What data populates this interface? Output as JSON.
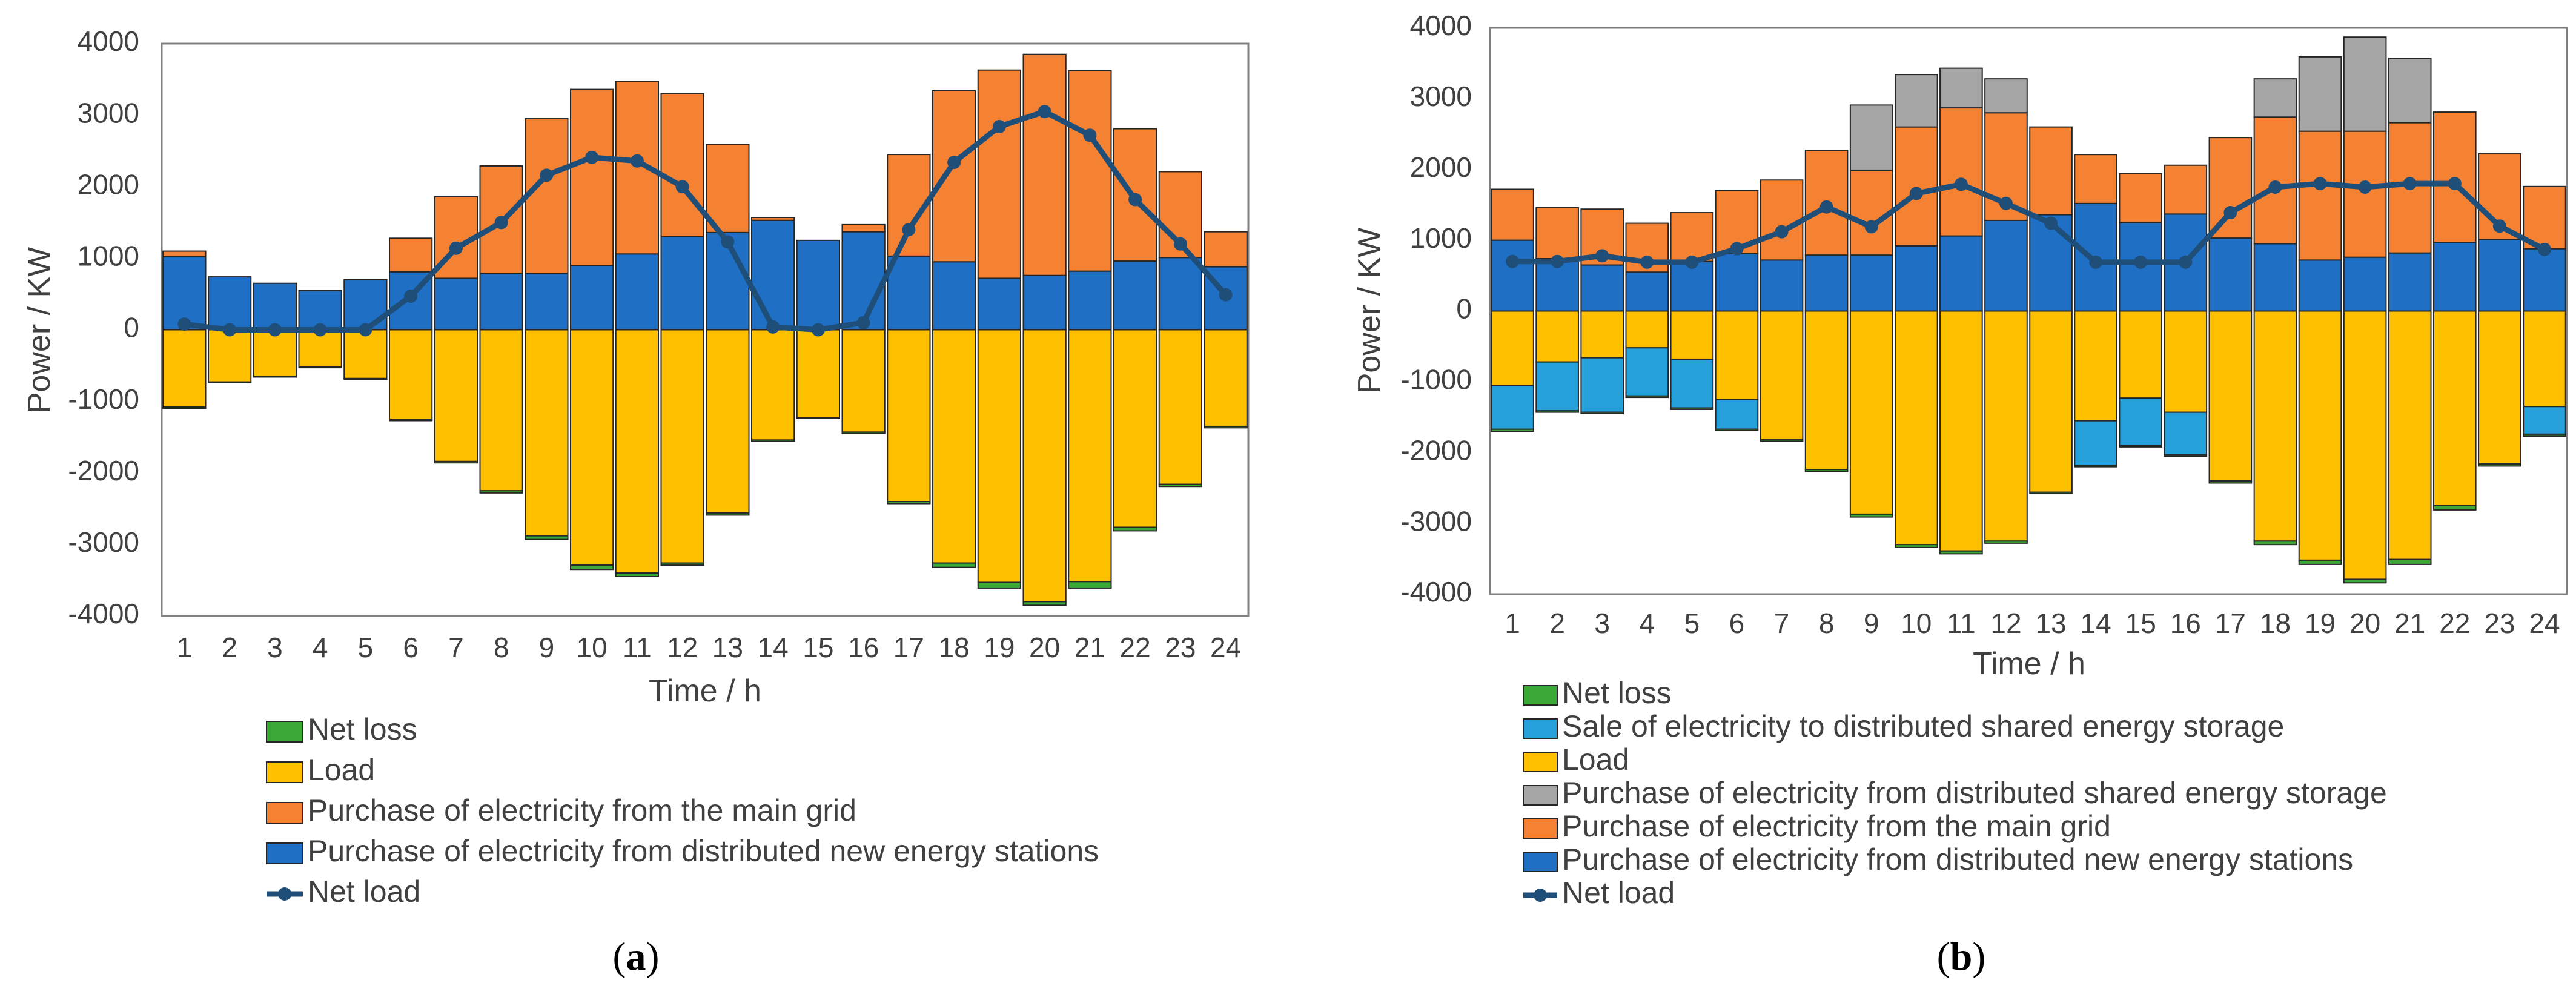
{
  "chart_data": [
    {
      "type": "bar",
      "subtitle": "(a)",
      "subtitle_letter": "a",
      "xlabel": "Time / h",
      "ylabel": "Power / KW",
      "ylim": [
        -4000,
        4000
      ],
      "yticks": [
        4000,
        3000,
        2000,
        1000,
        0,
        -1000,
        -2000,
        -3000,
        -4000
      ],
      "categories": [
        "1",
        "2",
        "3",
        "4",
        "5",
        "6",
        "7",
        "8",
        "9",
        "10",
        "11",
        "12",
        "13",
        "14",
        "15",
        "16",
        "17",
        "18",
        "19",
        "20",
        "21",
        "22",
        "23",
        "24"
      ],
      "colors": {
        "new_energy": "#1f6fc5",
        "main_grid": "#f58232",
        "load": "#ffc000",
        "net_loss": "#3aa935",
        "net_load": "#1f4e79"
      },
      "legend": [
        {
          "key": "net_loss",
          "label": "Net loss",
          "kind": "bar"
        },
        {
          "key": "load",
          "label": "Load",
          "kind": "bar"
        },
        {
          "key": "main_grid",
          "label": "Purchase of electricity from the main grid",
          "kind": "bar"
        },
        {
          "key": "new_energy",
          "label": "Purchase of electricity from distributed new energy stations",
          "kind": "bar"
        },
        {
          "key": "net_load",
          "label": "Net load",
          "kind": "line"
        }
      ],
      "positive_stack": [
        {
          "key": "new_energy",
          "values": [
            1020,
            740,
            650,
            550,
            700,
            810,
            720,
            790,
            790,
            900,
            1060,
            1300,
            1360,
            1530,
            1250,
            1370,
            1030,
            950,
            720,
            760,
            820,
            960,
            1010,
            880
          ]
        },
        {
          "key": "main_grid",
          "values": [
            80,
            0,
            0,
            0,
            0,
            470,
            1140,
            1500,
            2160,
            2460,
            2410,
            2000,
            1230,
            40,
            0,
            100,
            1420,
            2390,
            2910,
            3090,
            2800,
            1850,
            1200,
            490
          ]
        }
      ],
      "negative_stack": [
        {
          "key": "load",
          "values": [
            -1080,
            -730,
            -650,
            -520,
            -680,
            -1250,
            -1840,
            -2250,
            -2880,
            -3290,
            -3400,
            -3260,
            -2560,
            -1540,
            -1230,
            -1430,
            -2400,
            -3260,
            -3530,
            -3800,
            -3520,
            -2760,
            -2160,
            -1350
          ]
        },
        {
          "key": "net_loss",
          "values": [
            -20,
            -10,
            -10,
            -10,
            -10,
            -20,
            -20,
            -30,
            -50,
            -60,
            -50,
            -30,
            -30,
            -20,
            -10,
            -20,
            -30,
            -60,
            -80,
            -50,
            -90,
            -50,
            -30,
            -20
          ]
        }
      ],
      "net_load": [
        80,
        0,
        0,
        0,
        0,
        470,
        1140,
        1500,
        2160,
        2410,
        2360,
        2000,
        1230,
        40,
        0,
        100,
        1400,
        2340,
        2840,
        3050,
        2720,
        1820,
        1200,
        490
      ]
    },
    {
      "type": "bar",
      "subtitle": "(b)",
      "subtitle_letter": "b",
      "xlabel": "Time  / h",
      "ylabel": "Power / KW",
      "ylim": [
        -4000,
        4000
      ],
      "yticks": [
        4000,
        3000,
        2000,
        1000,
        0,
        -1000,
        -2000,
        -3000,
        -4000
      ],
      "categories": [
        "1",
        "2",
        "3",
        "4",
        "5",
        "6",
        "7",
        "8",
        "9",
        "10",
        "11",
        "12",
        "13",
        "14",
        "15",
        "16",
        "17",
        "18",
        "19",
        "20",
        "21",
        "22",
        "23",
        "24"
      ],
      "colors": {
        "new_energy": "#1f6fc5",
        "main_grid": "#f58232",
        "shared_purchase": "#a6a6a6",
        "load": "#ffc000",
        "shared_sale": "#26a0da",
        "net_loss": "#3aa935",
        "net_load": "#1f4e79"
      },
      "legend": [
        {
          "key": "net_loss",
          "label": "Net loss",
          "kind": "bar"
        },
        {
          "key": "shared_sale",
          "label": "Sale of electricity to distributed shared energy storage",
          "kind": "bar"
        },
        {
          "key": "load",
          "label": "Load",
          "kind": "bar"
        },
        {
          "key": "shared_purchase",
          "label": "Purchase of electricity  from distributed shared energy storage",
          "kind": "bar"
        },
        {
          "key": "main_grid",
          "label": "Purchase of electricity from the main grid",
          "kind": "bar"
        },
        {
          "key": "new_energy",
          "label": "Purchase of electricity from distributed new energy stations",
          "kind": "bar"
        },
        {
          "key": "net_load",
          "label": "Net load",
          "kind": "line"
        }
      ],
      "positive_stack": [
        {
          "key": "new_energy",
          "values": [
            1000,
            740,
            650,
            550,
            700,
            810,
            720,
            790,
            790,
            920,
            1060,
            1280,
            1360,
            1520,
            1250,
            1370,
            1030,
            950,
            720,
            760,
            820,
            970,
            1010,
            880
          ]
        },
        {
          "key": "main_grid",
          "values": [
            720,
            720,
            790,
            690,
            690,
            890,
            1130,
            1480,
            1200,
            1680,
            1810,
            1520,
            1240,
            690,
            690,
            690,
            1420,
            1790,
            1820,
            1780,
            1840,
            1840,
            1210,
            880
          ]
        },
        {
          "key": "shared_purchase",
          "values": [
            0,
            0,
            0,
            0,
            0,
            0,
            0,
            0,
            920,
            740,
            560,
            480,
            0,
            0,
            0,
            0,
            0,
            540,
            1050,
            1330,
            910,
            0,
            0,
            0
          ]
        }
      ],
      "negative_stack": [
        {
          "key": "load",
          "values": [
            -1050,
            -720,
            -660,
            -520,
            -680,
            -1250,
            -1820,
            -2240,
            -2870,
            -3300,
            -3390,
            -3250,
            -2560,
            -1550,
            -1230,
            -1430,
            -2400,
            -3250,
            -3520,
            -3790,
            -3510,
            -2750,
            -2160,
            -1350
          ]
        },
        {
          "key": "shared_sale",
          "values": [
            -620,
            -690,
            -770,
            -680,
            -690,
            -420,
            0,
            0,
            0,
            0,
            0,
            0,
            0,
            -630,
            -670,
            -600,
            0,
            0,
            0,
            0,
            0,
            0,
            0,
            -390
          ]
        },
        {
          "key": "net_loss",
          "values": [
            -30,
            -20,
            -20,
            -20,
            -20,
            -20,
            -20,
            -30,
            -40,
            -40,
            -40,
            -30,
            -20,
            -20,
            -20,
            -20,
            -30,
            -50,
            -60,
            -50,
            -70,
            -60,
            -30,
            -30
          ]
        }
      ],
      "net_load": [
        700,
        700,
        780,
        690,
        690,
        880,
        1120,
        1470,
        1190,
        1660,
        1790,
        1520,
        1240,
        690,
        690,
        690,
        1390,
        1750,
        1800,
        1750,
        1800,
        1800,
        1200,
        870
      ]
    }
  ]
}
